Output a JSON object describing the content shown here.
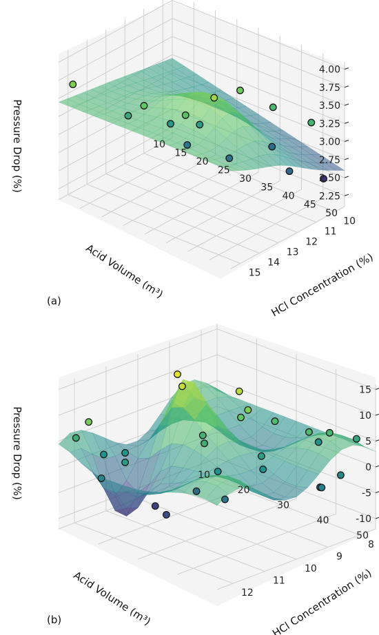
{
  "chart_data": [
    {
      "panel_label": "(a)",
      "type": "surface3d-scatter",
      "zlabel": "Pressure Drop (%)",
      "xlabel": "HCl Concentration (%)",
      "ylabel": "Acid Volume (m³)",
      "x_ticks": [
        "10",
        "11",
        "12",
        "13",
        "14",
        "15"
      ],
      "y_ticks": [
        "10",
        "15",
        "20",
        "25",
        "30",
        "35",
        "40",
        "45",
        "50"
      ],
      "z_ticks": [
        "2.25",
        "2.50",
        "2.75",
        "3.00",
        "3.25",
        "3.50",
        "3.75",
        "4.00"
      ],
      "x_range": [
        9.5,
        15.5
      ],
      "y_range": [
        10,
        50
      ],
      "z_range": [
        2.1,
        4.1
      ],
      "colormap": "viridis",
      "points": [
        {
          "x": 9.7,
          "y": 46,
          "z": 2.42
        },
        {
          "x": 11.5,
          "y": 46,
          "z": 2.78
        },
        {
          "x": 11.6,
          "y": 35,
          "z": 3.65
        },
        {
          "x": 11.0,
          "y": 40,
          "z": 3.45
        },
        {
          "x": 10.8,
          "y": 48,
          "z": 3.4
        },
        {
          "x": 12.4,
          "y": 36,
          "z": 2.85
        },
        {
          "x": 12.6,
          "y": 30,
          "z": 3.2
        },
        {
          "x": 12.8,
          "y": 28,
          "z": 2.9
        },
        {
          "x": 13.2,
          "y": 36,
          "z": 3.8
        },
        {
          "x": 13.0,
          "y": 25,
          "z": 3.15
        },
        {
          "x": 13.8,
          "y": 32,
          "z": 3.55
        },
        {
          "x": 14.1,
          "y": 20,
          "z": 3.3
        },
        {
          "x": 14.4,
          "y": 25,
          "z": 3.6
        },
        {
          "x": 15.2,
          "y": 12,
          "z": 3.7
        },
        {
          "x": 10.6,
          "y": 38,
          "z": 2.8
        }
      ]
    },
    {
      "panel_label": "(b)",
      "type": "surface3d-scatter",
      "zlabel": "Pressure Drop (%)",
      "xlabel": "HCl Concentration (%)",
      "ylabel": "Acid Volume (m³)",
      "x_ticks": [
        "8",
        "9",
        "10",
        "11",
        "12"
      ],
      "y_ticks": [
        "10",
        "20",
        "30",
        "40",
        "50"
      ],
      "z_ticks": [
        "-10",
        "-5",
        "0",
        "5",
        "10",
        "15"
      ],
      "x_range": [
        7.5,
        12.5
      ],
      "y_range": [
        10,
        50
      ],
      "z_range": [
        -12,
        16
      ],
      "colormap": "viridis",
      "points": [
        {
          "x": 7.6,
          "y": 46,
          "z": 4.5
        },
        {
          "x": 7.8,
          "y": 38,
          "z": 2.0
        },
        {
          "x": 8.2,
          "y": 44,
          "z": 6.5
        },
        {
          "x": 8.6,
          "y": 42,
          "z": 7.0
        },
        {
          "x": 8.8,
          "y": 35,
          "z": 7.5
        },
        {
          "x": 8.6,
          "y": 50,
          "z": 1.0
        },
        {
          "x": 9.0,
          "y": 48,
          "z": -1.0
        },
        {
          "x": 9.2,
          "y": 50,
          "z": 0.0
        },
        {
          "x": 9.3,
          "y": 30,
          "z": 13.0
        },
        {
          "x": 9.4,
          "y": 33,
          "z": 10.5
        },
        {
          "x": 9.5,
          "y": 32,
          "z": 9.0
        },
        {
          "x": 9.6,
          "y": 38,
          "z": 3.5
        },
        {
          "x": 9.8,
          "y": 40,
          "z": 2.0
        },
        {
          "x": 10.0,
          "y": 20,
          "z": 15.0
        },
        {
          "x": 10.1,
          "y": 22,
          "z": 13.5
        },
        {
          "x": 10.2,
          "y": 28,
          "z": 6.0
        },
        {
          "x": 10.4,
          "y": 30,
          "z": 5.5
        },
        {
          "x": 10.6,
          "y": 35,
          "z": 2.0
        },
        {
          "x": 10.9,
          "y": 32,
          "z": -2.0
        },
        {
          "x": 11.0,
          "y": 40,
          "z": -1.0
        },
        {
          "x": 11.2,
          "y": 24,
          "z": -6.5
        },
        {
          "x": 11.6,
          "y": 30,
          "z": -5.5
        },
        {
          "x": 11.4,
          "y": 18,
          "z": 2.5
        },
        {
          "x": 11.7,
          "y": 15,
          "z": 2.0
        },
        {
          "x": 12.2,
          "y": 12,
          "z": 5.5
        },
        {
          "x": 12.3,
          "y": 16,
          "z": 10.0
        },
        {
          "x": 11.9,
          "y": 22,
          "z": 3.0
        },
        {
          "x": 12.4,
          "y": 20,
          "z": 0.5
        }
      ]
    }
  ]
}
